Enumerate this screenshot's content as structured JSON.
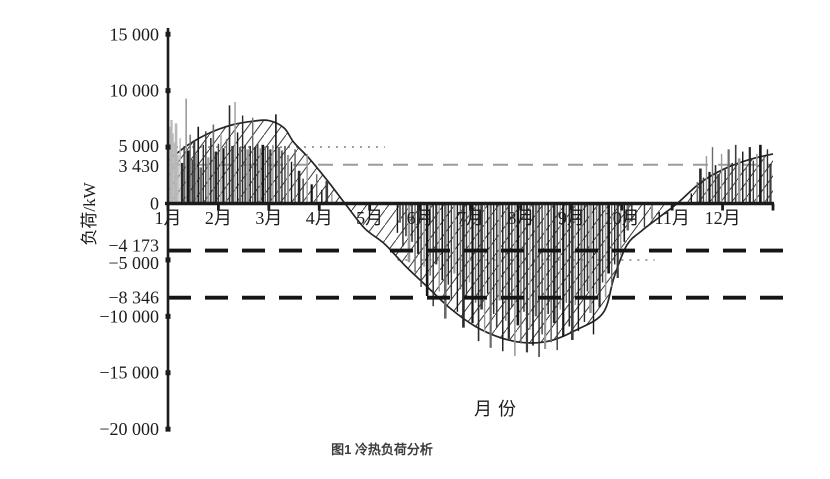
{
  "figure": {
    "caption": "图1 冷热负荷分析",
    "background": "#ffffff"
  },
  "colors": {
    "axis": "#1b1b1b",
    "curve": "#262626",
    "hatch": "#3f3f3f",
    "gray_dash": "#9b9b9b",
    "black_dash": "#151515",
    "dotted_guide": "#8a8a8a",
    "light_bar": "#b8b8b8",
    "bar_palette": [
      "#161616",
      "#3d3d3d",
      "#6b6b6b",
      "#9a9a9a",
      "#2a2a2a"
    ]
  },
  "chart_data": {
    "type": "line-bar-composite",
    "title": "",
    "xlabel": "月份",
    "ylabel": "负荷/kW",
    "x_categories": [
      "1月",
      "2月",
      "3月",
      "4月",
      "5月",
      "6月",
      "7月",
      "8月",
      "9月",
      "10月",
      "11月",
      "12月"
    ],
    "ylim": [
      -20000,
      15000
    ],
    "grid": false,
    "y_ticks": [
      {
        "label": "15 000",
        "value": 15000,
        "dy": 0
      },
      {
        "label": "10 000",
        "value": 10000,
        "dy": 0
      },
      {
        "label": "5 000",
        "value": 5000,
        "dy": -1
      },
      {
        "label": "3 430",
        "value": 3430,
        "dy": 1
      },
      {
        "label": "0",
        "value": 0,
        "dy": 0
      },
      {
        "label": "−4 173",
        "value": -4173,
        "dy": -5
      },
      {
        "label": "−5 000",
        "value": -5000,
        "dy": 3
      },
      {
        "label": "−8 346",
        "value": -8346,
        "dy": 0
      },
      {
        "label": "−10 000",
        "value": -10000,
        "dy": 0
      },
      {
        "label": "−15 000",
        "value": -15000,
        "dy": 0
      },
      {
        "label": "−20 000",
        "value": -20000,
        "dy": 0
      }
    ],
    "marker_tick_values": [
      15000,
      10000,
      5000,
      -5000,
      -10000,
      -15000,
      -20000
    ],
    "reference_lines": [
      {
        "label": "3 430",
        "value": 3430,
        "color": "#9b9b9b",
        "style": "long-dash",
        "weight": "thin"
      },
      {
        "label": "−4 173",
        "value": -4173,
        "color": "#151515",
        "style": "long-dash",
        "weight": "thick"
      },
      {
        "label": "−8 346",
        "value": -8346,
        "color": "#151515",
        "style": "long-dash",
        "weight": "thick"
      }
    ],
    "dotted_guides": [
      {
        "value": 5000,
        "t1": 1.0,
        "t2": 5.3
      },
      {
        "value": -5000,
        "t1": 5.55,
        "t2": 10.65
      }
    ],
    "envelope_curve": {
      "points": [
        [
          1.0,
          3800
        ],
        [
          1.4,
          5200
        ],
        [
          1.85,
          6300
        ],
        [
          2.3,
          7000
        ],
        [
          2.7,
          7300
        ],
        [
          3.0,
          7350
        ],
        [
          3.3,
          6700
        ],
        [
          3.5,
          5400
        ],
        [
          3.8,
          4000
        ],
        [
          4.15,
          2100
        ],
        [
          4.51,
          0
        ],
        [
          4.9,
          -2200
        ],
        [
          5.3,
          -3600
        ],
        [
          5.7,
          -5500
        ],
        [
          6.1,
          -7200
        ],
        [
          6.6,
          -9300
        ],
        [
          7.1,
          -10900
        ],
        [
          7.6,
          -11900
        ],
        [
          8.1,
          -12350
        ],
        [
          8.6,
          -12150
        ],
        [
          9.1,
          -11200
        ],
        [
          9.63,
          -9700
        ],
        [
          9.85,
          -6500
        ],
        [
          10.1,
          -3700
        ],
        [
          10.4,
          -2400
        ],
        [
          10.75,
          -1200
        ],
        [
          11.1,
          0
        ],
        [
          11.55,
          1800
        ],
        [
          12.0,
          3000
        ],
        [
          12.5,
          3850
        ],
        [
          13.0,
          4400
        ]
      ]
    },
    "daily_load_bars": {
      "points": [
        [
          1.04,
          6800
        ],
        [
          1.07,
          7400
        ],
        [
          1.1,
          6200
        ],
        [
          1.13,
          5400
        ],
        [
          1.16,
          7100
        ],
        [
          1.2,
          4300
        ],
        [
          1.24,
          5800
        ],
        [
          1.28,
          3600
        ],
        [
          1.32,
          5100
        ],
        [
          1.36,
          9300
        ],
        [
          1.4,
          4700
        ],
        [
          1.44,
          6100
        ],
        [
          1.48,
          3900
        ],
        [
          1.52,
          5600
        ],
        [
          1.56,
          4400
        ],
        [
          1.6,
          6800
        ],
        [
          1.65,
          3200
        ],
        [
          1.7,
          5200
        ],
        [
          1.75,
          6400
        ],
        [
          1.8,
          4100
        ],
        [
          1.85,
          5800
        ],
        [
          1.9,
          7000
        ],
        [
          1.95,
          4600
        ],
        [
          2.0,
          5300
        ],
        [
          2.05,
          6200
        ],
        [
          2.1,
          4900
        ],
        [
          2.16,
          5700
        ],
        [
          2.22,
          8700
        ],
        [
          2.28,
          5100
        ],
        [
          2.33,
          9000
        ],
        [
          2.38,
          6300
        ],
        [
          2.43,
          5000
        ],
        [
          2.48,
          7800
        ],
        [
          2.53,
          5200
        ],
        [
          2.58,
          4800
        ],
        [
          2.63,
          5100
        ],
        [
          2.68,
          7600
        ],
        [
          2.73,
          5000
        ],
        [
          2.78,
          5300
        ],
        [
          2.83,
          4900
        ],
        [
          2.88,
          5200
        ],
        [
          2.93,
          5000
        ],
        [
          2.98,
          5100
        ],
        [
          3.03,
          4800
        ],
        [
          3.08,
          5200
        ],
        [
          3.14,
          7900
        ],
        [
          3.2,
          5000
        ],
        [
          3.26,
          4700
        ],
        [
          3.32,
          5100
        ],
        [
          3.38,
          4300
        ],
        [
          3.45,
          3700
        ],
        [
          3.52,
          4800
        ],
        [
          3.6,
          2900
        ],
        [
          3.68,
          2200
        ],
        [
          3.76,
          4400
        ],
        [
          3.85,
          1700
        ],
        [
          3.95,
          2600
        ],
        [
          4.05,
          1200
        ],
        [
          4.15,
          2000
        ],
        [
          4.25,
          900
        ],
        [
          5.55,
          -2600
        ],
        [
          5.6,
          -1700
        ],
        [
          5.66,
          -3800
        ],
        [
          5.72,
          -2900
        ],
        [
          5.78,
          -5200
        ],
        [
          5.84,
          -3400
        ],
        [
          5.9,
          -6100
        ],
        [
          5.96,
          -4500
        ],
        [
          6.02,
          -7400
        ],
        [
          6.08,
          -5600
        ],
        [
          6.14,
          -8200
        ],
        [
          6.2,
          -6400
        ],
        [
          6.26,
          -9100
        ],
        [
          6.32,
          -5400
        ],
        [
          6.38,
          -7800
        ],
        [
          6.44,
          -6800
        ],
        [
          6.5,
          -10200
        ],
        [
          6.56,
          -7200
        ],
        [
          6.62,
          -8600
        ],
        [
          6.68,
          -6200
        ],
        [
          6.74,
          -9600
        ],
        [
          6.8,
          -7600
        ],
        [
          6.86,
          -11000
        ],
        [
          6.92,
          -8400
        ],
        [
          6.98,
          -7000
        ],
        [
          7.04,
          -10600
        ],
        [
          7.1,
          -8800
        ],
        [
          7.16,
          -12200
        ],
        [
          7.22,
          -9400
        ],
        [
          7.28,
          -11400
        ],
        [
          7.34,
          -8000
        ],
        [
          7.4,
          -12800
        ],
        [
          7.46,
          -9800
        ],
        [
          7.52,
          -11000
        ],
        [
          7.58,
          -8600
        ],
        [
          7.64,
          -13100
        ],
        [
          7.7,
          -10400
        ],
        [
          7.76,
          -12000
        ],
        [
          7.82,
          -9200
        ],
        [
          7.88,
          -13500
        ],
        [
          7.94,
          -10800
        ],
        [
          8.0,
          -12400
        ],
        [
          8.06,
          -9600
        ],
        [
          8.12,
          -13200
        ],
        [
          8.18,
          -11200
        ],
        [
          8.24,
          -12600
        ],
        [
          8.3,
          -10000
        ],
        [
          8.36,
          -13600
        ],
        [
          8.42,
          -11600
        ],
        [
          8.48,
          -12900
        ],
        [
          8.54,
          -9800
        ],
        [
          8.6,
          -12300
        ],
        [
          8.66,
          -10600
        ],
        [
          8.72,
          -13000
        ],
        [
          8.78,
          -9400
        ],
        [
          8.84,
          -11800
        ],
        [
          8.9,
          -8800
        ],
        [
          8.96,
          -10900
        ],
        [
          9.02,
          -12100
        ],
        [
          9.08,
          -9000
        ],
        [
          9.14,
          -11300
        ],
        [
          9.2,
          -8400
        ],
        [
          9.26,
          -10500
        ],
        [
          9.32,
          -7800
        ],
        [
          9.38,
          -9700
        ],
        [
          9.44,
          -11600
        ],
        [
          9.5,
          -8000
        ],
        [
          9.56,
          -9200
        ],
        [
          9.62,
          -7000
        ],
        [
          9.68,
          -8300
        ],
        [
          9.74,
          -6200
        ],
        [
          9.8,
          -7400
        ],
        [
          9.86,
          -5400
        ],
        [
          9.92,
          -6600
        ],
        [
          9.98,
          -4600
        ],
        [
          10.05,
          -3400
        ],
        [
          10.12,
          -2400
        ],
        [
          10.2,
          -1600
        ],
        [
          10.45,
          -2100
        ],
        [
          10.6,
          -1400
        ],
        [
          11.38,
          900
        ],
        [
          11.5,
          1900
        ],
        [
          11.56,
          3100
        ],
        [
          11.62,
          2300
        ],
        [
          11.68,
          4200
        ],
        [
          11.74,
          2800
        ],
        [
          11.8,
          5000
        ],
        [
          11.86,
          3400
        ],
        [
          11.92,
          2600
        ],
        [
          11.98,
          4400
        ],
        [
          12.05,
          3000
        ],
        [
          12.12,
          4800
        ],
        [
          12.19,
          3600
        ],
        [
          12.26,
          5200
        ],
        [
          12.33,
          4000
        ],
        [
          12.4,
          4600
        ],
        [
          12.47,
          3200
        ],
        [
          12.54,
          5000
        ],
        [
          12.61,
          3800
        ],
        [
          12.68,
          4400
        ],
        [
          12.75,
          5200
        ],
        [
          12.82,
          4100
        ],
        [
          12.89,
          4800
        ],
        [
          12.95,
          3500
        ]
      ]
    }
  }
}
